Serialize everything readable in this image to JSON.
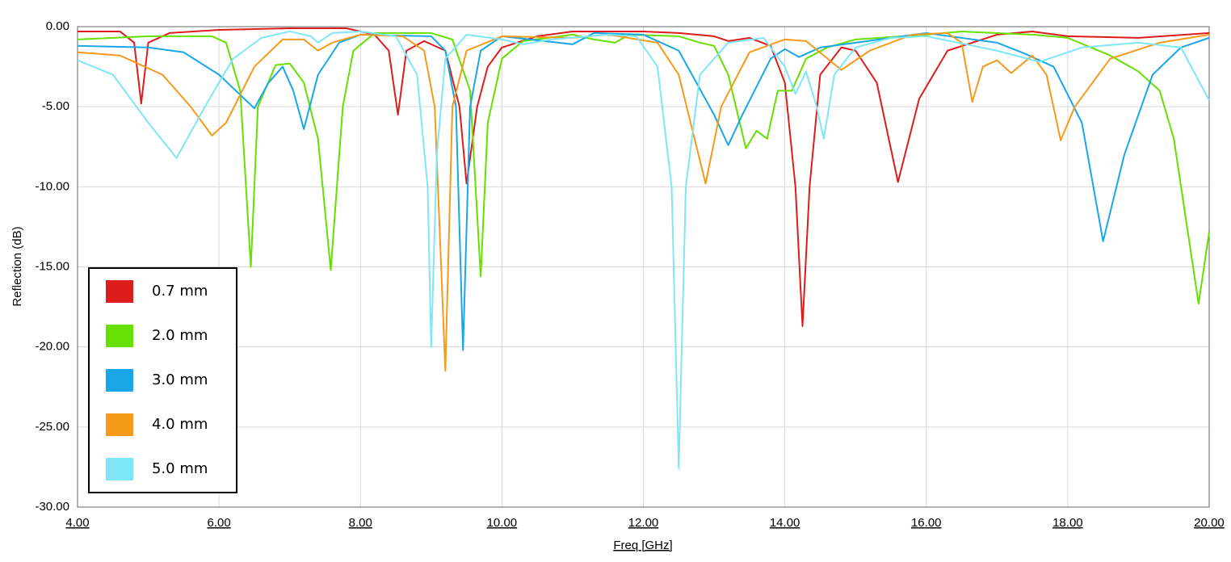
{
  "chart_data": {
    "type": "line",
    "x_label": "Freq [GHz]",
    "y_label": "Reflection (dB)",
    "xlim": [
      4,
      20
    ],
    "ylim": [
      -30,
      0
    ],
    "xticks": [
      {
        "value": 4,
        "label": "4.00"
      },
      {
        "value": 6,
        "label": "6.00"
      },
      {
        "value": 8,
        "label": "8.00"
      },
      {
        "value": 10,
        "label": "10.00"
      },
      {
        "value": 12,
        "label": "12.00"
      },
      {
        "value": 14,
        "label": "14.00"
      },
      {
        "value": 16,
        "label": "16.00"
      },
      {
        "value": 18,
        "label": "18.00"
      },
      {
        "value": 20,
        "label": "20.00"
      }
    ],
    "yticks": [
      {
        "value": 0,
        "label": "0.00"
      },
      {
        "value": -5,
        "label": "-5.00"
      },
      {
        "value": -10,
        "label": "-10.00"
      },
      {
        "value": -15,
        "label": "-15.00"
      },
      {
        "value": -20,
        "label": "-20.00"
      },
      {
        "value": -25,
        "label": "-25.00"
      },
      {
        "value": -30,
        "label": "-30.00"
      }
    ],
    "grid": true,
    "legend": "lower left",
    "series": [
      {
        "name": "0.7 mm",
        "color": "#dd1c1c",
        "x": [
          4.0,
          4.6,
          4.8,
          4.9,
          5.0,
          5.3,
          6.0,
          7.0,
          7.8,
          8.2,
          8.4,
          8.53,
          8.65,
          8.9,
          9.2,
          9.4,
          9.5,
          9.65,
          9.8,
          10.0,
          10.5,
          11.0,
          12.0,
          12.5,
          13.0,
          13.2,
          13.5,
          13.8,
          14.0,
          14.15,
          14.25,
          14.35,
          14.5,
          14.8,
          15.0,
          15.3,
          15.6,
          15.9,
          16.3,
          17.0,
          17.5,
          18.0,
          19.0,
          20.0
        ],
        "values": [
          -0.3,
          -0.3,
          -1.0,
          -4.8,
          -1.0,
          -0.4,
          -0.2,
          -0.1,
          -0.1,
          -0.5,
          -1.5,
          -5.5,
          -1.5,
          -0.9,
          -1.5,
          -5,
          -9.8,
          -5,
          -2.5,
          -1.3,
          -0.6,
          -0.3,
          -0.3,
          -0.4,
          -0.6,
          -0.9,
          -0.7,
          -1.2,
          -3.5,
          -10,
          -18.7,
          -10,
          -3,
          -1.3,
          -1.5,
          -3.5,
          -9.7,
          -4.5,
          -1.5,
          -0.5,
          -0.3,
          -0.6,
          -0.7,
          -0.4
        ]
      },
      {
        "name": "2.0 mm",
        "color": "#66e000",
        "x": [
          4.0,
          5.0,
          5.9,
          6.1,
          6.3,
          6.45,
          6.55,
          6.8,
          7.0,
          7.2,
          7.4,
          7.58,
          7.75,
          7.9,
          8.2,
          9.0,
          9.3,
          9.55,
          9.7,
          9.8,
          10.0,
          10.3,
          11.0,
          11.3,
          11.6,
          11.8,
          12.5,
          12.8,
          13.0,
          13.2,
          13.45,
          13.6,
          13.75,
          13.9,
          14.1,
          14.3,
          14.6,
          15.0,
          16.0,
          16.5,
          17.5,
          18.0,
          18.6,
          19.0,
          19.3,
          19.5,
          19.85,
          20.0
        ],
        "values": [
          -0.8,
          -0.6,
          -0.6,
          -1.0,
          -4,
          -15,
          -5,
          -2.4,
          -2.3,
          -3.5,
          -7,
          -15.2,
          -5,
          -1.5,
          -0.4,
          -0.4,
          -0.8,
          -4,
          -15.6,
          -6,
          -2,
          -0.9,
          -0.5,
          -0.8,
          -1.0,
          -0.5,
          -0.6,
          -1.0,
          -1.2,
          -3,
          -7.6,
          -6.5,
          -7,
          -4,
          -4,
          -2,
          -1.3,
          -0.8,
          -0.5,
          -0.3,
          -0.5,
          -0.7,
          -1.8,
          -2.8,
          -4,
          -7,
          -17.3,
          -12.8
        ]
      },
      {
        "name": "3.0 mm",
        "color": "#1aa7e8",
        "x": [
          4.0,
          5.0,
          5.5,
          6.0,
          6.5,
          6.7,
          6.9,
          7.05,
          7.2,
          7.4,
          7.7,
          8.0,
          9.0,
          9.2,
          9.35,
          9.45,
          9.55,
          9.7,
          10.0,
          11.0,
          11.3,
          12.0,
          12.5,
          13.0,
          13.2,
          13.4,
          13.8,
          14.0,
          14.2,
          14.5,
          15.0,
          16.0,
          17.0,
          17.4,
          17.8,
          18.2,
          18.5,
          18.8,
          19.2,
          19.6,
          20.0
        ],
        "values": [
          -1.2,
          -1.3,
          -1.6,
          -3,
          -5.1,
          -3.5,
          -2.5,
          -4,
          -6.4,
          -3,
          -1,
          -0.5,
          -0.6,
          -1.5,
          -5,
          -20.2,
          -5,
          -1.5,
          -0.6,
          -1.1,
          -0.4,
          -0.5,
          -1.5,
          -5.5,
          -7.4,
          -5.5,
          -2.0,
          -1.4,
          -1.9,
          -1.3,
          -1.0,
          -0.4,
          -1.0,
          -1.7,
          -2.5,
          -6,
          -13.4,
          -8,
          -3,
          -1.3,
          -0.7
        ]
      },
      {
        "name": "4.0 mm",
        "color": "#f59a1a",
        "x": [
          4.0,
          4.6,
          5.2,
          5.6,
          5.9,
          6.1,
          6.5,
          6.9,
          7.2,
          7.4,
          7.6,
          8.0,
          8.6,
          8.9,
          9.05,
          9.2,
          9.3,
          9.5,
          10.0,
          11.0,
          11.5,
          12.2,
          12.5,
          12.88,
          13.1,
          13.5,
          14.0,
          14.3,
          14.8,
          15.2,
          15.8,
          16.3,
          16.5,
          16.65,
          16.8,
          17.0,
          17.2,
          17.5,
          17.7,
          17.9,
          18.1,
          18.6,
          19.3,
          20.0
        ],
        "values": [
          -1.6,
          -1.8,
          -3,
          -5,
          -6.8,
          -6,
          -2.5,
          -0.8,
          -0.8,
          -1.5,
          -1,
          -0.5,
          -0.6,
          -1.5,
          -5,
          -21.5,
          -5,
          -1.5,
          -0.6,
          -0.7,
          -0.5,
          -1,
          -3,
          -9.8,
          -5,
          -1.6,
          -0.8,
          -0.9,
          -2.7,
          -1.5,
          -0.5,
          -0.4,
          -1.0,
          -4.7,
          -2.5,
          -2.1,
          -2.9,
          -1.8,
          -3,
          -7.1,
          -5,
          -2,
          -1,
          -0.5
        ]
      },
      {
        "name": "5.0 mm",
        "color": "#7fe6f7",
        "x": [
          4.0,
          4.5,
          5.0,
          5.4,
          5.8,
          6.2,
          6.6,
          7.0,
          7.3,
          7.4,
          7.6,
          8.0,
          8.5,
          8.8,
          8.95,
          9.0,
          9.08,
          9.2,
          9.5,
          10.0,
          10.3,
          10.7,
          11.5,
          11.9,
          12.2,
          12.4,
          12.5,
          12.6,
          12.8,
          13.2,
          13.7,
          14.0,
          14.15,
          14.3,
          14.45,
          14.55,
          14.7,
          15.0,
          15.5,
          16.0,
          17.0,
          17.6,
          18.2,
          19.0,
          19.6,
          20.0
        ],
        "values": [
          -2.1,
          -3,
          -6,
          -8.2,
          -5,
          -2,
          -0.7,
          -0.3,
          -0.6,
          -1.0,
          -0.4,
          -0.3,
          -0.6,
          -3,
          -10,
          -20,
          -8,
          -2,
          -0.5,
          -0.8,
          -1.1,
          -0.8,
          -0.5,
          -0.6,
          -2.5,
          -10,
          -27.6,
          -10,
          -3,
          -1.0,
          -0.7,
          -2.5,
          -4.2,
          -2.8,
          -5,
          -7,
          -3,
          -1.3,
          -0.7,
          -0.6,
          -1.5,
          -2.2,
          -1.3,
          -1.0,
          -1.3,
          -4.6
        ]
      }
    ]
  }
}
